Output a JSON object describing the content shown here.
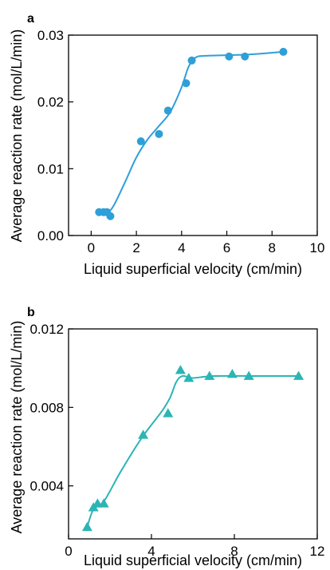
{
  "chart_data": [
    {
      "type": "scatter",
      "panel_label": "a",
      "xlabel": "Liquid superficial velocity (cm/min)",
      "ylabel": "Average reaction rate (mol/L/min)",
      "xlim": [
        -1,
        10
      ],
      "ylim": [
        0,
        0.03
      ],
      "xticks": [
        "0",
        "2",
        "4",
        "6",
        "8",
        "10"
      ],
      "yticks": [
        "0.00",
        "0.01",
        "0.02",
        "0.03"
      ],
      "marker": "circle",
      "color": "#2f9fd8",
      "grid": false,
      "x": [
        0.35,
        0.55,
        0.7,
        0.85,
        2.2,
        3.0,
        3.4,
        4.2,
        4.45,
        6.1,
        6.8,
        8.5
      ],
      "y": [
        0.0035,
        0.0035,
        0.0035,
        0.0029,
        0.0141,
        0.0152,
        0.0187,
        0.0228,
        0.0262,
        0.0268,
        0.0268,
        0.0275
      ],
      "fit_line": {
        "x": [
          0.35,
          0.7,
          1.0,
          1.5,
          2.0,
          2.5,
          3.0,
          3.5,
          4.0,
          4.3,
          4.6,
          5.0,
          6.0,
          7.0,
          8.5
        ],
        "y": [
          0.0034,
          0.0034,
          0.0045,
          0.008,
          0.0117,
          0.0144,
          0.0164,
          0.0185,
          0.0222,
          0.0252,
          0.0266,
          0.0269,
          0.027,
          0.0271,
          0.0275
        ]
      }
    },
    {
      "type": "scatter",
      "panel_label": "b",
      "xlabel": "Liquid superficial velocity (cm/min)",
      "ylabel": "Average reaction rate (mol/L/min)",
      "xlim": [
        0,
        12
      ],
      "ylim": [
        0.0013,
        0.012
      ],
      "xticks": [
        "0",
        "4",
        "8",
        "12"
      ],
      "yticks": [
        "0.004",
        "0.008",
        "0.012"
      ],
      "marker": "triangle",
      "color": "#2bb5b5",
      "grid": false,
      "x": [
        0.9,
        1.2,
        1.4,
        1.7,
        3.6,
        4.8,
        5.4,
        5.8,
        6.8,
        7.9,
        8.7,
        11.1
      ],
      "y": [
        0.0019,
        0.0029,
        0.0031,
        0.0031,
        0.0066,
        0.0077,
        0.0099,
        0.0095,
        0.0096,
        0.0097,
        0.0096,
        0.0096
      ],
      "fit_line": {
        "x": [
          0.9,
          1.2,
          1.7,
          2.5,
          3.5,
          4.5,
          4.9,
          5.2,
          5.5,
          6.0,
          7.0,
          9.0,
          11.1
        ],
        "y": [
          0.0019,
          0.0028,
          0.0032,
          0.0047,
          0.0064,
          0.0078,
          0.0085,
          0.0093,
          0.0096,
          0.0095,
          0.0096,
          0.0096,
          0.0096
        ]
      }
    }
  ]
}
